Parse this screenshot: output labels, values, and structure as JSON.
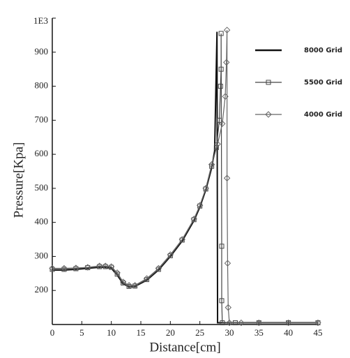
{
  "chart_data": {
    "type": "line",
    "x_label": "Distance[cm]",
    "y_label": "Pressure[Kpa]",
    "xlim": [
      0,
      45
    ],
    "ylim": [
      100,
      1000
    ],
    "xticks": [
      0,
      5,
      10,
      15,
      20,
      25,
      30,
      35,
      40,
      45
    ],
    "yticks": [
      200,
      300,
      400,
      500,
      600,
      700,
      800,
      900,
      {
        "value": 1000,
        "label": "1E3"
      }
    ],
    "series": [
      {
        "name": "8000 Grid",
        "color": "#111111",
        "marker": "none",
        "x": [
          0,
          2,
          4,
          6,
          8,
          9,
          10,
          11,
          12,
          13,
          14,
          16,
          18,
          20,
          22,
          24,
          25,
          26,
          27,
          27.5,
          27.9,
          28.0,
          30,
          35,
          40,
          45
        ],
        "values": [
          260,
          260,
          262,
          265,
          268,
          268,
          265,
          245,
          220,
          210,
          212,
          230,
          260,
          300,
          345,
          405,
          445,
          495,
          560,
          610,
          960,
          105,
          105,
          105,
          105,
          105
        ]
      },
      {
        "name": "5500 Grid",
        "color": "#444444",
        "marker": "square",
        "x": [
          0,
          2,
          4,
          6,
          8,
          9,
          10,
          11,
          12,
          13,
          14,
          16,
          18,
          20,
          22,
          24,
          25,
          26,
          27,
          27.8,
          28.3,
          28.5,
          28.6,
          28.6,
          28.7,
          28.7,
          28.8,
          31,
          35,
          40,
          45
        ],
        "values": [
          262,
          262,
          264,
          267,
          270,
          270,
          268,
          248,
          222,
          212,
          213,
          232,
          262,
          302,
          348,
          408,
          448,
          498,
          565,
          620,
          700,
          800,
          850,
          955,
          330,
          170,
          105,
          105,
          105,
          105,
          105
        ]
      },
      {
        "name": "4000 Grid",
        "color": "#666666",
        "marker": "diamond",
        "x": [
          0,
          2,
          4,
          6,
          8,
          9,
          10,
          11,
          12,
          13,
          14,
          16,
          18,
          20,
          22,
          24,
          25,
          26,
          27,
          28,
          28.8,
          29.3,
          29.5,
          29.6,
          29.6,
          29.7,
          29.8,
          30,
          32,
          35,
          40,
          45
        ],
        "values": [
          265,
          265,
          266,
          268,
          272,
          272,
          270,
          252,
          225,
          215,
          215,
          235,
          265,
          305,
          350,
          410,
          450,
          500,
          570,
          630,
          690,
          770,
          870,
          965,
          530,
          280,
          150,
          105,
          105,
          105,
          105,
          105
        ]
      }
    ]
  }
}
